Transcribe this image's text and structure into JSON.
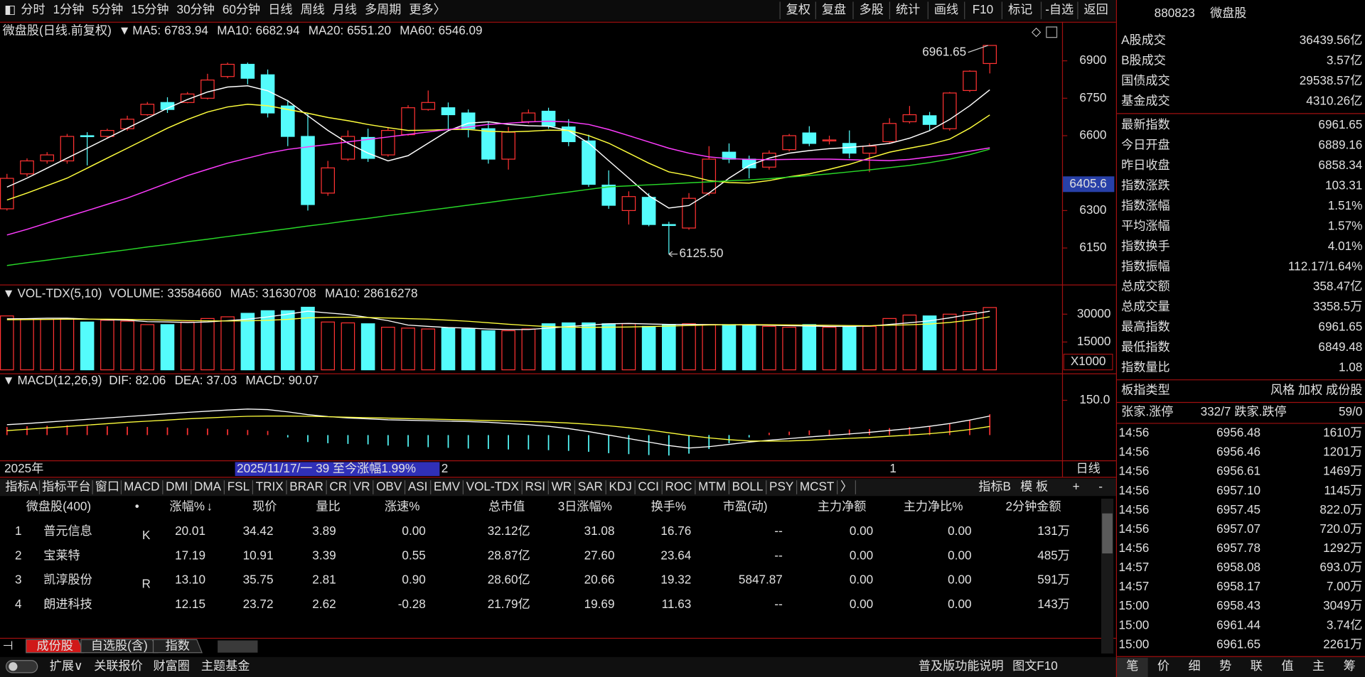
{
  "toolbar": {
    "periods": [
      "分时",
      "1分钟",
      "5分钟",
      "15分钟",
      "30分钟",
      "60分钟",
      "日线",
      "周线",
      "月线",
      "多周期",
      "更多〉"
    ],
    "active_period": 6,
    "tools": [
      "复权",
      "复盘",
      "多股",
      "统计",
      "画线",
      "F10",
      "标记",
      "-自选",
      "返回"
    ]
  },
  "price_chart": {
    "title": "微盘股",
    "subtitle": "(日线.前复权)",
    "ma": [
      {
        "label": "MA5:",
        "value": "6783.94",
        "color": "#ffffff",
        "values": [
          6394,
          6430,
          6470,
          6510,
          6550,
          6590,
          6630,
          6670,
          6710,
          6745,
          6775,
          6795,
          6800,
          6780,
          6740,
          6680,
          6621,
          6570,
          6530,
          6499,
          6520,
          6570,
          6620,
          6650,
          6656,
          6645,
          6640,
          6638,
          6620,
          6570,
          6500,
          6430,
          6360,
          6310,
          6320,
          6370,
          6430,
          6481,
          6510,
          6530,
          6540,
          6548,
          6553,
          6560,
          6569,
          6590,
          6620,
          6665,
          6720,
          6783.94
        ]
      },
      {
        "label": "MA10:",
        "value": "6682.94",
        "color": "#ffff3c",
        "values": [
          6342,
          6370,
          6400,
          6430,
          6470,
          6510,
          6550,
          6590,
          6630,
          6665,
          6695,
          6715,
          6726,
          6720,
          6705,
          6690,
          6673,
          6660,
          6645,
          6632,
          6621,
          6622,
          6625,
          6625,
          6618,
          6615,
          6618,
          6622,
          6621,
          6600,
          6570,
          6530,
          6490,
          6455,
          6440,
          6420,
          6412,
          6410,
          6420,
          6435,
          6447,
          6465,
          6485,
          6510,
          6534,
          6550,
          6565,
          6586,
          6630,
          6682.94
        ]
      },
      {
        "label": "MA20:",
        "value": "6551.20",
        "color": "#ff3cff",
        "values": [
          6202,
          6225,
          6250,
          6275,
          6300,
          6325,
          6350,
          6380,
          6410,
          6440,
          6465,
          6490,
          6510,
          6530,
          6545,
          6555,
          6565,
          6575,
          6585,
          6595,
          6605,
          6615,
          6625,
          6635,
          6645,
          6650,
          6655,
          6658,
          6655,
          6645,
          6625,
          6600,
          6575,
          6550,
          6530,
          6515,
          6508,
          6505,
          6504,
          6505,
          6506,
          6506,
          6504,
          6502,
          6500,
          6505,
          6515,
          6525,
          6538,
          6551.2
        ]
      },
      {
        "label": "MA60:",
        "value": "6546.09",
        "color": "#28d828",
        "values": [
          6080,
          6091,
          6101,
          6112,
          6122,
          6133,
          6143,
          6154,
          6164,
          6175,
          6185,
          6196,
          6206,
          6217,
          6227,
          6238,
          6248,
          6259,
          6269,
          6280,
          6290,
          6301,
          6311,
          6322,
          6332,
          6343,
          6353,
          6364,
          6374,
          6385,
          6395,
          6399,
          6403,
          6407,
          6411,
          6415,
          6419,
          6423,
          6428,
          6434,
          6440,
          6447,
          6455,
          6463,
          6472,
          6481,
          6492,
          6506,
          6524,
          6546.09
        ]
      }
    ],
    "open": [
      6307,
      6447,
      6499,
      6499,
      6600,
      6597,
      6628,
      6684,
      6733,
      6733,
      6750,
      6837,
      6886,
      6844,
      6719,
      6597,
      6370,
      6506,
      6593,
      6523,
      6604,
      6705,
      6712,
      6691,
      6628,
      6506,
      6656,
      6698,
      6635,
      6579,
      6402,
      6300,
      6353,
      6244,
      6230,
      6370,
      6534,
      6506,
      6474,
      6544,
      6611,
      6579,
      6569,
      6530,
      6576,
      6656,
      6680,
      6628,
      6781,
      6889.16
    ],
    "high": [
      6447,
      6509,
      6534,
      6607,
      6614,
      6628,
      6680,
      6735,
      6754,
      6775,
      6848,
      6893,
      6893,
      6865,
      6743,
      6691,
      6499,
      6621,
      6628,
      6635,
      6722,
      6781,
      6733,
      6705,
      6656,
      6635,
      6705,
      6712,
      6666,
      6604,
      6461,
      6377,
      6370,
      6255,
      6370,
      6558,
      6569,
      6520,
      6541,
      6607,
      6638,
      6600,
      6621,
      6569,
      6670,
      6719,
      6695,
      6775,
      6862,
      6961.65
    ],
    "low": [
      6300,
      6436,
      6488,
      6488,
      6481,
      6590,
      6620,
      6680,
      6691,
      6730,
      6745,
      6830,
      6806,
      6673,
      6558,
      6300,
      6359,
      6499,
      6495,
      6516,
      6600,
      6700,
      6621,
      6593,
      6488,
      6464,
      6649,
      6628,
      6558,
      6395,
      6307,
      6244,
      6237,
      6125.5,
      6223,
      6360,
      6490,
      6429,
      6464,
      6537,
      6558,
      6565,
      6509,
      6454,
      6570,
      6649,
      6621,
      6620,
      6775,
      6849.48
    ],
    "close": [
      6429,
      6499,
      6523,
      6597,
      6596,
      6621,
      6666,
      6726,
      6705,
      6767,
      6823,
      6886,
      6830,
      6691,
      6597,
      6324,
      6471,
      6597,
      6509,
      6621,
      6712,
      6733,
      6684,
      6628,
      6506,
      6614,
      6691,
      6638,
      6576,
      6405,
      6321,
      6356,
      6244,
      6240,
      6349,
      6506,
      6506,
      6471,
      6530,
      6600,
      6569,
      6583,
      6530,
      6558,
      6649,
      6684,
      6645,
      6771,
      6858.34,
      6961.65
    ],
    "up_color": "#ff3232",
    "down_color": "#54fcfc",
    "ylim": [
      6007,
      7053
    ],
    "yticks": [
      6150,
      6300,
      6600,
      6750,
      6900
    ],
    "cursor_value": 6405.6,
    "high_label": "6961.65",
    "low_label": "6125.50"
  },
  "volume_chart": {
    "title": "VOL-TDX(5,10)",
    "volume_label": "VOLUME:",
    "volume_value": "33584660",
    "ma": [
      {
        "label": "MA5:",
        "value": "31630708",
        "color": "#ffffff",
        "values": [
          27500,
          27600,
          27800,
          27800,
          27400,
          27000,
          26800,
          26000,
          25800,
          25500,
          25800,
          26500,
          27300,
          28500,
          30000,
          31600,
          30700,
          29800,
          28300,
          26500,
          24100,
          23400,
          22800,
          22500,
          22000,
          21700,
          21700,
          22500,
          23300,
          24100,
          24800,
          25000,
          24700,
          24500,
          24500,
          24400,
          24300,
          24200,
          24000,
          23800,
          23600,
          23400,
          23400,
          23600,
          24500,
          25400,
          26400,
          28000,
          29900,
          31630.708
        ]
      },
      {
        "label": "MA10:",
        "value": "28616278",
        "color": "#ffff3c",
        "values": [
          27000,
          27100,
          27200,
          27300,
          27300,
          27300,
          27200,
          27000,
          26800,
          26500,
          26400,
          26300,
          26400,
          26700,
          27200,
          28000,
          28300,
          28400,
          28200,
          27900,
          27600,
          27300,
          26800,
          26200,
          25400,
          24600,
          23900,
          23300,
          23000,
          22900,
          23000,
          23100,
          23300,
          23600,
          23900,
          24200,
          24300,
          24400,
          24300,
          24200,
          24100,
          24000,
          23900,
          23800,
          24000,
          24300,
          24700,
          25500,
          26800,
          28616.278
        ]
      }
    ],
    "values": [
      29060,
      27190,
      27190,
      27660,
      25780,
      26720,
      26250,
      24380,
      24380,
      25780,
      27660,
      28590,
      30470,
      31880,
      31880,
      33750,
      25780,
      25310,
      24840,
      22970,
      22500,
      22030,
      22500,
      22030,
      21090,
      21090,
      22030,
      24840,
      25310,
      25310,
      24840,
      24840,
      23440,
      24380,
      24840,
      24380,
      24380,
      23910,
      23440,
      22970,
      24380,
      22970,
      23440,
      23440,
      27660,
      29530,
      29060,
      30000,
      31410,
      33584.66
    ],
    "ylim": [
      -1400,
      45500
    ],
    "yticks": [
      15000,
      30000
    ],
    "unit": "X1000"
  },
  "macd_chart": {
    "title": "MACD(12,26,9)",
    "lines": [
      {
        "label": "DIF:",
        "value": "82.06",
        "color": "#ffffff",
        "values": [
          45,
          50,
          56,
          62,
          68,
          74,
          80,
          86,
          92,
          98,
          103,
          108,
          112,
          110,
          100,
          88,
          80,
          74,
          70,
          66,
          64,
          62,
          60,
          58,
          55,
          50,
          45,
          38,
          28,
          15,
          0,
          -15,
          -30,
          -45,
          -56,
          -50,
          -40,
          -30,
          -22,
          -15,
          -8,
          -2,
          5,
          12,
          20,
          28,
          38,
          50,
          65,
          82.06
        ]
      },
      {
        "label": "DEA:",
        "value": "37.03",
        "color": "#ffff3c",
        "values": [
          19,
          25,
          31,
          37,
          43,
          49,
          55,
          60,
          65,
          70,
          74,
          78,
          81,
          82,
          82,
          81,
          79,
          77,
          75,
          73,
          71,
          69,
          67,
          65,
          63,
          61,
          59,
          56,
          52,
          47,
          40,
          32,
          22,
          10,
          -2,
          -12,
          -20,
          -25,
          -26,
          -25,
          -22,
          -18,
          -14,
          -10,
          -5,
          0,
          6,
          14,
          24,
          37.03
        ]
      }
    ],
    "macd_label": "MACD:",
    "macd_value": "90.07",
    "macd_color": "#ff3cff",
    "bars": [
      35,
      38,
      40,
      42,
      40,
      38,
      36,
      35,
      33,
      30,
      28,
      25,
      22,
      18,
      -10,
      -30,
      -35,
      -38,
      -40,
      -45,
      -50,
      -52,
      -55,
      -58,
      -60,
      -62,
      -62,
      -65,
      -68,
      -72,
      -78,
      -82,
      -86,
      -88,
      -80,
      -60,
      -35,
      -10,
      10,
      15,
      20,
      22,
      24,
      26,
      30,
      35,
      40,
      50,
      65,
      90.07
    ],
    "ylim": [
      -105,
      262.5
    ],
    "yticks": [
      {
        "value": 150,
        "label": "150.0"
      }
    ]
  },
  "time_axis": {
    "year": "2025年",
    "info": "2025/11/17/一 39 至今涨幅1.99%",
    "marks": [
      "2",
      "1"
    ],
    "period": "日线"
  },
  "indicator_tabs": {
    "left": [
      "指标A",
      "指标平台",
      "窗口"
    ],
    "items": [
      "MACD",
      "DMI",
      "DMA",
      "FSL",
      "TRIX",
      "BRAR",
      "CR",
      "VR",
      "OBV",
      "ASI",
      "EMV",
      "VOL-TDX",
      "RSI",
      "WR",
      "SAR",
      "KDJ",
      "CCI",
      "ROC",
      "MTM",
      "BOLL",
      "PSY",
      "MCST",
      "〉"
    ],
    "active": 0,
    "right": [
      "指标B",
      "模 板",
      "+",
      "-"
    ]
  },
  "table": {
    "title": "微盘股(400)",
    "dot": "•",
    "sort_mark": "↓",
    "headers": [
      "涨幅%",
      "现价",
      "量比",
      "涨速%",
      "总市值",
      "3日涨幅%",
      "换手%",
      "市盈(动)",
      "主力净额",
      "主力净比%",
      "2分钟金额"
    ],
    "rows": [
      [
        "1",
        "普元信息",
        "K",
        "20.01",
        "34.42",
        "3.89",
        "0.00",
        "32.12亿",
        "31.08",
        "16.76",
        "--",
        "0.00",
        "0.00",
        "131万"
      ],
      [
        "2",
        "宝莱特",
        null,
        "17.19",
        "10.91",
        "3.39",
        "0.55",
        "28.87亿",
        "27.60",
        "23.64",
        "--",
        "0.00",
        "0.00",
        "485万"
      ],
      [
        "3",
        "凯淳股份",
        "R",
        "13.10",
        "35.75",
        "2.81",
        "0.90",
        "28.60亿",
        "20.66",
        "19.32",
        "5847.87",
        "0.00",
        "0.00",
        "591万"
      ],
      [
        "4",
        "朗进科技",
        null,
        "12.15",
        "23.72",
        "2.62",
        "-0.28",
        "21.79亿",
        "19.69",
        "11.63",
        "--",
        "0.00",
        "0.00",
        "143万"
      ]
    ]
  },
  "bottom_tabs": [
    "成份股",
    "自选股(含)",
    "指数"
  ],
  "status_bar": {
    "left": [
      "扩展∨",
      "关联报价",
      "财富圈",
      "主题基金"
    ],
    "right": [
      "普及版功能说明",
      "图文F10"
    ]
  },
  "side_panel": {
    "code": "880823",
    "name": "微盘股",
    "stats": [
      {
        "label": "A股成交",
        "value": "36439.56亿",
        "color": "#ffff3c"
      },
      {
        "label": "B股成交",
        "value": "3.57亿",
        "color": "#ffff3c"
      },
      {
        "label": "国债成交",
        "value": "29538.57亿",
        "color": "#ffff3c"
      },
      {
        "label": "基金成交",
        "value": "4310.26亿",
        "color": "#ffff3c"
      },
      {
        "label": "最新指数",
        "value": "6961.65",
        "color": "#ff3232"
      },
      {
        "label": "今日开盘",
        "value": "6889.16",
        "color": "#ff3232"
      },
      {
        "label": "昨日收盘",
        "value": "6858.34",
        "color": "#e0e0e0"
      },
      {
        "label": "指数涨跌",
        "value": "103.31",
        "color": "#ff3232"
      },
      {
        "label": "指数涨幅",
        "value": "1.51%",
        "color": "#ff3232"
      },
      {
        "label": "平均涨幅",
        "value": "1.57%",
        "color": "#ff3232"
      },
      {
        "label": "指数换手",
        "value": "4.01%",
        "color": "#e0e0e0"
      },
      {
        "label": "指数振幅",
        "value": "112.17/1.64%",
        "color": "#e0e0e0"
      },
      {
        "label": "总成交额",
        "value": "358.47亿",
        "color": "#ffff3c"
      },
      {
        "label": "总成交量",
        "value": "3358.5万",
        "color": "#ffff3c"
      },
      {
        "label": "最高指数",
        "value": "6961.65",
        "color": "#ff3232"
      },
      {
        "label": "最低指数",
        "value": "6849.48",
        "color": "#28e028"
      },
      {
        "label": "指数量比",
        "value": "1.08",
        "color": "#ff3232"
      }
    ],
    "type_label": "板指类型",
    "type_values": "风格 加权 成份股",
    "breadth": [
      "张家.涨停",
      "332/7",
      "跌家.跌停",
      "59/0"
    ],
    "ticks": [
      [
        "14:56",
        "6956.48",
        "1610万"
      ],
      [
        "14:56",
        "6956.46",
        "1201万"
      ],
      [
        "14:56",
        "6956.61",
        "1469万"
      ],
      [
        "14:56",
        "6957.10",
        "1145万"
      ],
      [
        "14:56",
        "6957.45",
        "822.0万"
      ],
      [
        "14:56",
        "6957.07",
        "720.0万"
      ],
      [
        "14:56",
        "6957.78",
        "1292万"
      ],
      [
        "14:57",
        "6958.08",
        "693.0万"
      ],
      [
        "14:57",
        "6958.17",
        "7.00万"
      ],
      [
        "15:00",
        "6958.43",
        "3049万"
      ],
      [
        "15:00",
        "6961.44",
        "3.74亿"
      ],
      [
        "15:00",
        "6961.65",
        "2261万"
      ]
    ],
    "tabs": [
      "笔",
      "价",
      "细",
      "势",
      "联",
      "值",
      "主",
      "筹"
    ]
  }
}
